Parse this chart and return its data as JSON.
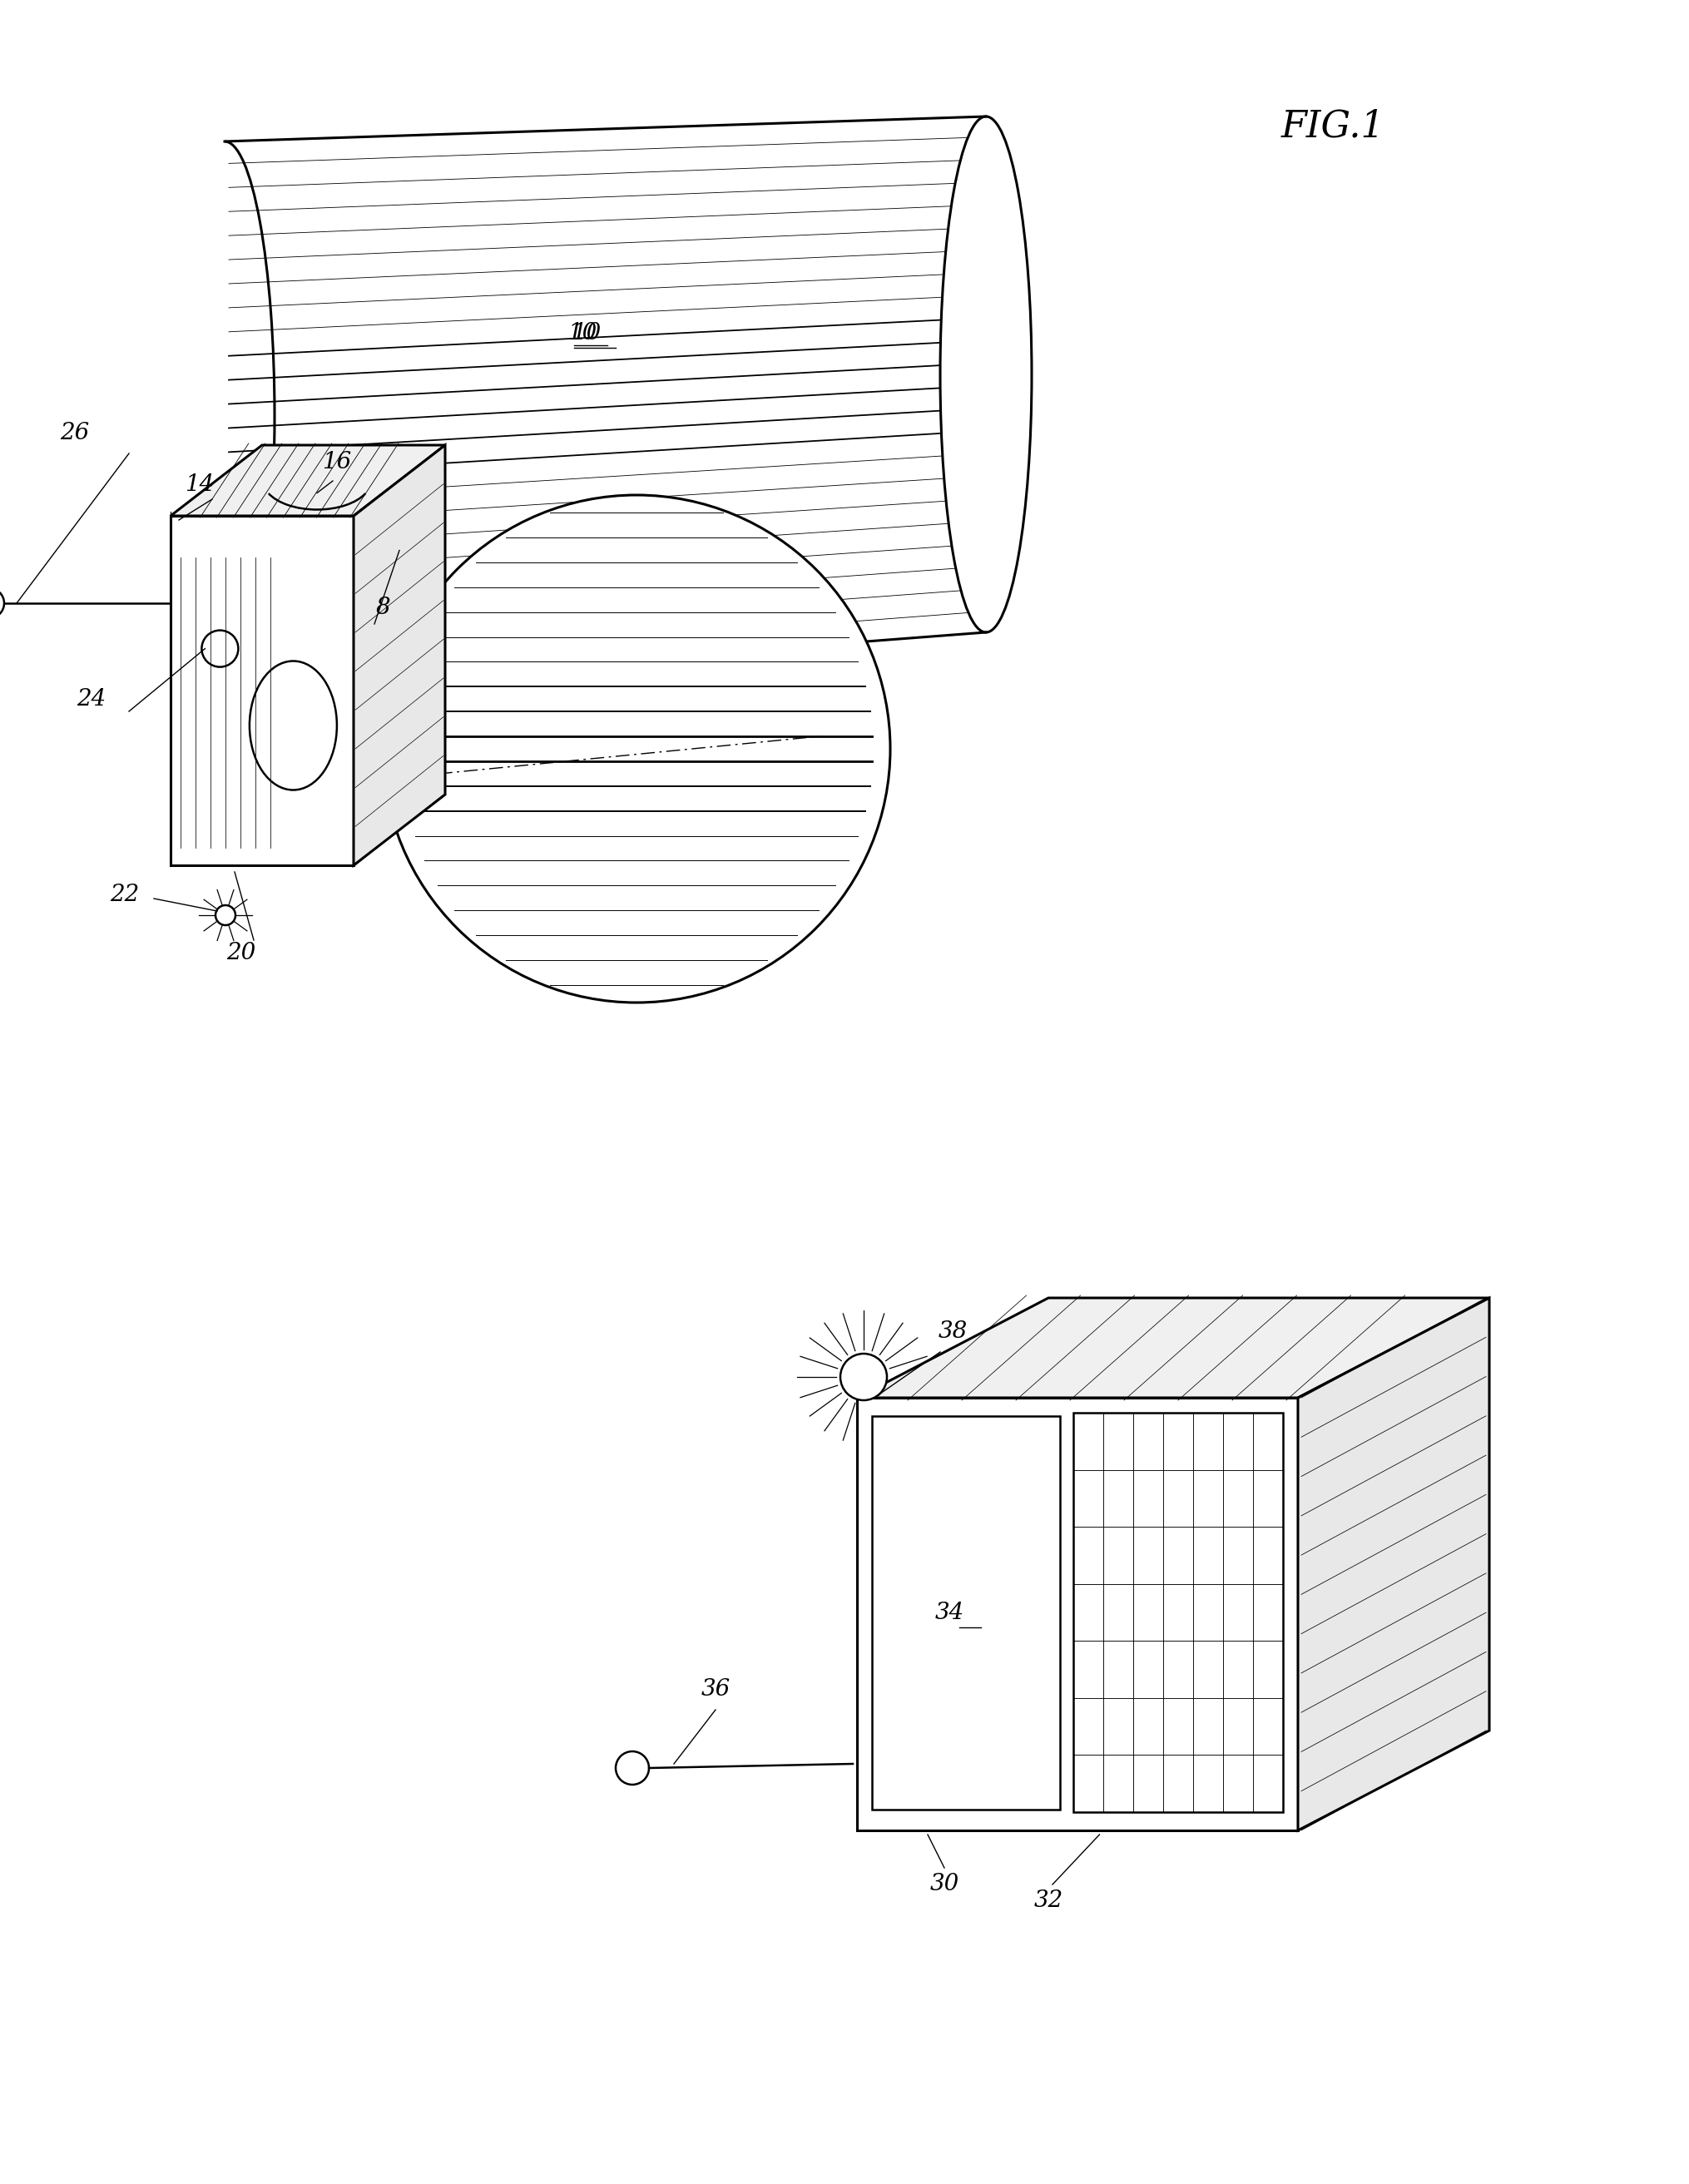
{
  "background_color": "#ffffff",
  "line_color": "#000000",
  "fig_title": "FIG.1",
  "label_fontsize": 20,
  "title_fontsize": 32,
  "lw_main": 1.8,
  "lw_thin": 1.0,
  "lw_thick": 2.2
}
